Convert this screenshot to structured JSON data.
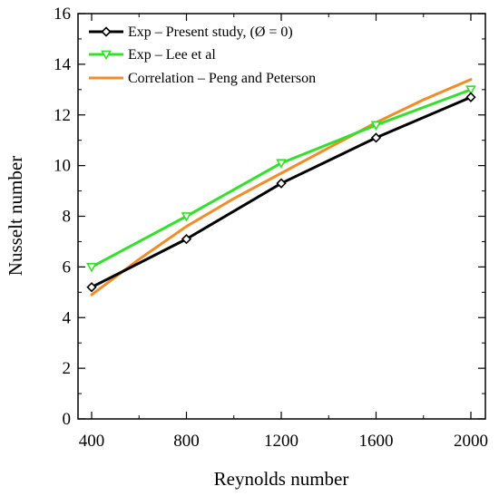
{
  "chart_data": {
    "type": "line",
    "xlabel": "Reynolds number",
    "ylabel": "Nusselt number",
    "xlim": [
      400,
      2000
    ],
    "ylim": [
      0,
      16
    ],
    "xticks": [
      400,
      800,
      1200,
      1600,
      2000
    ],
    "yticks": [
      0,
      2,
      4,
      6,
      8,
      10,
      12,
      14,
      16
    ],
    "xtick_labels": [
      "400",
      "800",
      "1200",
      "1600",
      "2000"
    ],
    "ytick_labels": [
      "0",
      "2",
      "4",
      "6",
      "8",
      "10",
      "12",
      "14",
      "16"
    ],
    "grid": false,
    "legend_position": "top-left",
    "series": [
      {
        "name": "Exp – Present study, (Ø = 0)",
        "color": "#000000",
        "marker": "diamond-open",
        "x": [
          400,
          800,
          1200,
          1600,
          2000
        ],
        "y": [
          5.2,
          7.1,
          9.3,
          11.1,
          12.7
        ]
      },
      {
        "name": "Exp – Lee et al",
        "color": "#33e02b",
        "marker": "triangle-down-open",
        "x": [
          400,
          800,
          1200,
          1600,
          2000
        ],
        "y": [
          6.0,
          8.0,
          10.1,
          11.6,
          13.0
        ]
      },
      {
        "name": "Correlation – Peng and Peterson",
        "color": "#f28c28",
        "marker": "none",
        "x": [
          400,
          600,
          800,
          1000,
          1200,
          1400,
          1600,
          1800,
          2000
        ],
        "y": [
          4.9,
          6.3,
          7.6,
          8.7,
          9.7,
          10.7,
          11.7,
          12.6,
          13.4
        ]
      }
    ]
  }
}
